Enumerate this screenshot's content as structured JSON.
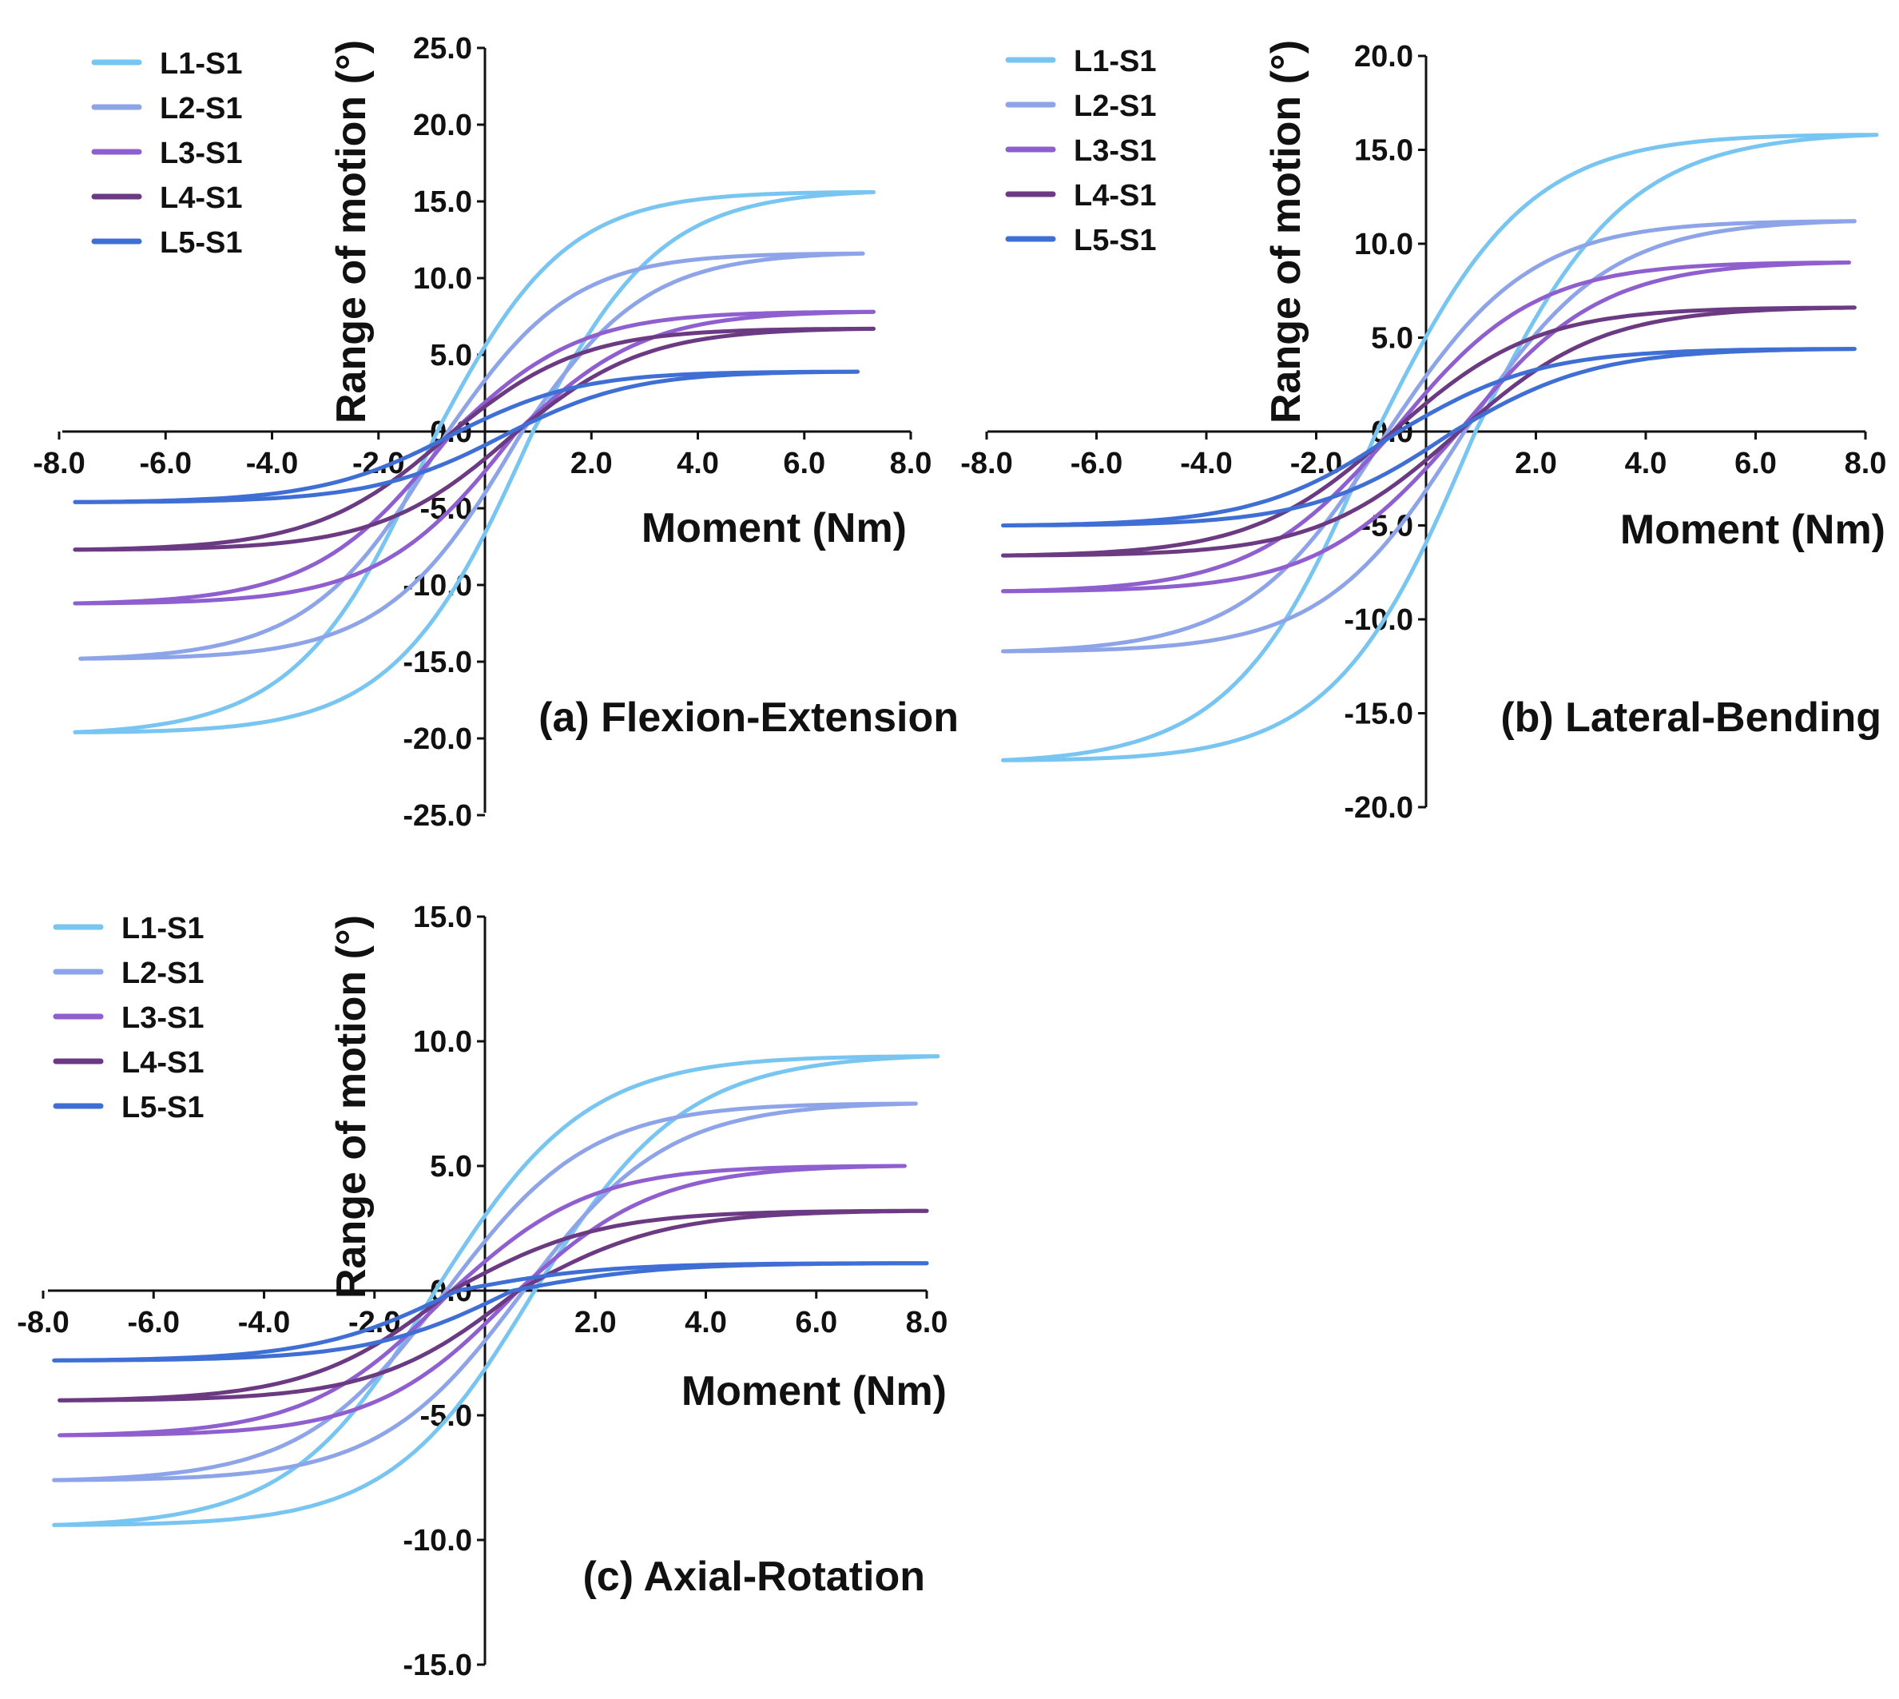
{
  "figure": {
    "legend_series": [
      {
        "name": "L1-S1",
        "color": "#79c5f2"
      },
      {
        "name": "L2-S1",
        "color": "#8ea4e8"
      },
      {
        "name": "L3-S1",
        "color": "#8f5fd0"
      },
      {
        "name": "L4-S1",
        "color": "#6b3a82"
      },
      {
        "name": "L5-S1",
        "color": "#3f6fd4"
      }
    ]
  },
  "chart_data": [
    {
      "type": "line",
      "title": "(a) Flexion-Extension",
      "xlabel": "Moment (Nm)",
      "ylabel": "Range of motion (°)",
      "xlim": [
        -8,
        8
      ],
      "ylim": [
        -25,
        25
      ],
      "xticks": [
        "-8.0",
        "-6.0",
        "-4.0",
        "-2.0",
        "2.0",
        "4.0",
        "6.0",
        "8.0"
      ],
      "xtick_values": [
        -8,
        -6,
        -4,
        -2,
        2,
        4,
        6,
        8
      ],
      "yticks": [
        "25.0",
        "20.0",
        "15.0",
        "10.0",
        "5.0",
        "0.0",
        "-5.0",
        "-10.0",
        "-15.0",
        "-20.0",
        "-25.0"
      ],
      "ytick_values": [
        25,
        20,
        15,
        10,
        5,
        0,
        -5,
        -10,
        -15,
        -20,
        -25
      ],
      "legend": [
        "L1-S1",
        "L2-S1",
        "L3-S1",
        "L4-S1",
        "L5-S1"
      ],
      "series": [
        {
          "name": "L1-S1",
          "x_min": -7.7,
          "x_max": 7.3,
          "y_min": -19.6,
          "y_max": 15.6,
          "hysteresis": 0.9
        },
        {
          "name": "L2-S1",
          "x_min": -7.6,
          "x_max": 7.1,
          "y_min": -14.8,
          "y_max": 11.6,
          "hysteresis": 0.7
        },
        {
          "name": "L3-S1",
          "x_min": -7.7,
          "x_max": 7.3,
          "y_min": -11.2,
          "y_max": 7.8,
          "hysteresis": 0.6
        },
        {
          "name": "L4-S1",
          "x_min": -7.7,
          "x_max": 7.3,
          "y_min": -7.7,
          "y_max": 6.7,
          "hysteresis": 0.6
        },
        {
          "name": "L5-S1",
          "x_min": -7.7,
          "x_max": 7.0,
          "y_min": -4.6,
          "y_max": 3.9,
          "hysteresis": 0.5
        }
      ]
    },
    {
      "type": "line",
      "title": "(b) Lateral-Bending",
      "xlabel": "Moment (Nm)",
      "ylabel": "Range of motion (°)",
      "xlim": [
        -8,
        8
      ],
      "ylim": [
        -20,
        20
      ],
      "xticks": [
        "-8.0",
        "-6.0",
        "-4.0",
        "-2.0",
        "2.0",
        "4.0",
        "6.0",
        "8.0"
      ],
      "xtick_values": [
        -8,
        -6,
        -4,
        -2,
        2,
        4,
        6,
        8
      ],
      "yticks": [
        "20.0",
        "15.0",
        "10.0",
        "5.0",
        "0.0",
        "-5.0",
        "-10.0",
        "-15.0",
        "-20.0"
      ],
      "ytick_values": [
        20,
        15,
        10,
        5,
        0,
        -5,
        -10,
        -15,
        -20
      ],
      "legend": [
        "L1-S1",
        "L2-S1",
        "L3-S1",
        "L4-S1",
        "L5-S1"
      ],
      "series": [
        {
          "name": "L1-S1",
          "x_min": -7.7,
          "x_max": 8.2,
          "y_min": -17.5,
          "y_max": 15.8,
          "hysteresis": 0.9
        },
        {
          "name": "L2-S1",
          "x_min": -7.7,
          "x_max": 7.8,
          "y_min": -11.7,
          "y_max": 11.2,
          "hysteresis": 0.7
        },
        {
          "name": "L3-S1",
          "x_min": -7.7,
          "x_max": 7.7,
          "y_min": -8.5,
          "y_max": 9.0,
          "hysteresis": 0.6
        },
        {
          "name": "L4-S1",
          "x_min": -7.7,
          "x_max": 7.8,
          "y_min": -6.6,
          "y_max": 6.6,
          "hysteresis": 0.6
        },
        {
          "name": "L5-S1",
          "x_min": -7.7,
          "x_max": 7.8,
          "y_min": -5.0,
          "y_max": 4.4,
          "hysteresis": 0.5
        }
      ]
    },
    {
      "type": "line",
      "title": "(c) Axial-Rotation",
      "xlabel": "Moment (Nm)",
      "ylabel": "Range of motion (°)",
      "xlim": [
        -8,
        8
      ],
      "ylim": [
        -15,
        15
      ],
      "xticks": [
        "-8.0",
        "-6.0",
        "-4.0",
        "-2.0",
        "2.0",
        "4.0",
        "6.0",
        "8.0"
      ],
      "xtick_values": [
        -8,
        -6,
        -4,
        -2,
        2,
        4,
        6,
        8
      ],
      "yticks": [
        "15.0",
        "10.0",
        "5.0",
        "0.0",
        "-5.0",
        "-10.0",
        "-15.0"
      ],
      "ytick_values": [
        15,
        10,
        5,
        0,
        -5,
        -10,
        -15
      ],
      "legend": [
        "L1-S1",
        "L2-S1",
        "L3-S1",
        "L4-S1",
        "L5-S1"
      ],
      "series": [
        {
          "name": "L1-S1",
          "x_min": -7.8,
          "x_max": 8.2,
          "y_min": -9.4,
          "y_max": 9.4,
          "hysteresis": 0.9
        },
        {
          "name": "L2-S1",
          "x_min": -7.8,
          "x_max": 7.8,
          "y_min": -7.6,
          "y_max": 7.5,
          "hysteresis": 0.7
        },
        {
          "name": "L3-S1",
          "x_min": -7.7,
          "x_max": 7.6,
          "y_min": -5.8,
          "y_max": 5.0,
          "hysteresis": 0.6
        },
        {
          "name": "L4-S1",
          "x_min": -7.7,
          "x_max": 8.0,
          "y_min": -4.4,
          "y_max": 3.2,
          "hysteresis": 0.6
        },
        {
          "name": "L5-S1",
          "x_min": -7.8,
          "x_max": 8.0,
          "y_min": -2.8,
          "y_max": 1.1,
          "hysteresis": 0.5
        }
      ]
    }
  ]
}
